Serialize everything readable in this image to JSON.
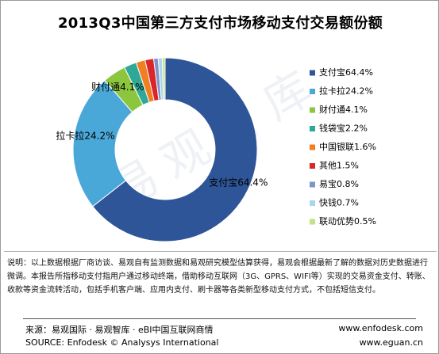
{
  "chart_data": {
    "type": "pie",
    "style": "donut",
    "title": "2013Q3中国第三方支付市场移动支付交易额份额",
    "legend_position": "right",
    "slices": [
      {
        "name": "支付宝",
        "label": "支付宝64.4%",
        "value": 64.4,
        "color": "#2e5597",
        "show_data_label": true
      },
      {
        "name": "拉卡拉",
        "label": "拉卡拉24.2%",
        "value": 24.2,
        "color": "#4aa8d8",
        "show_data_label": true
      },
      {
        "name": "财付通",
        "label": "财付通4.1%",
        "value": 4.1,
        "color": "#8cc63f",
        "show_data_label": true
      },
      {
        "name": "钱袋宝",
        "label": "钱袋宝2.2%",
        "value": 2.2,
        "color": "#30a898",
        "show_data_label": false
      },
      {
        "name": "中国银联",
        "label": "中国银联1.6%",
        "value": 1.6,
        "color": "#f07f22",
        "show_data_label": false
      },
      {
        "name": "其他",
        "label": "其他1.5%",
        "value": 1.5,
        "color": "#d9262b",
        "show_data_label": false
      },
      {
        "name": "易宝",
        "label": "易宝0.8%",
        "value": 0.8,
        "color": "#7f94c8",
        "show_data_label": false
      },
      {
        "name": "快钱",
        "label": "快钱0.7%",
        "value": 0.7,
        "color": "#a9d6ee",
        "show_data_label": false
      },
      {
        "name": "联动优势",
        "label": "联动优势0.5%",
        "value": 0.5,
        "color": "#c3e18a",
        "show_data_label": false
      }
    ]
  },
  "watermark": "易观智库",
  "note": "说明：以上数据根据厂商访谈、易观自有监测数据和易观研究模型估算获得，易观会根据最新了解的数据对历史数据进行微调。本报告所指移动支付指用户通过移动终端，借助移动互联网（3G、GPRS、WIFI等）实现的交易资金支付、转账、收款等资金流转活动，包括手机客户端、应用内支付、刷卡器等各类新型移动支付方式，不包括短信支付。",
  "source": {
    "cn": "来源：易观国际 · 易观智库 · eBI中国互联网商情",
    "en": "SOURCE: Enfodesk © Analysys International",
    "site1": "www.enfodesk.com",
    "site2": "www.eguan.cn"
  }
}
